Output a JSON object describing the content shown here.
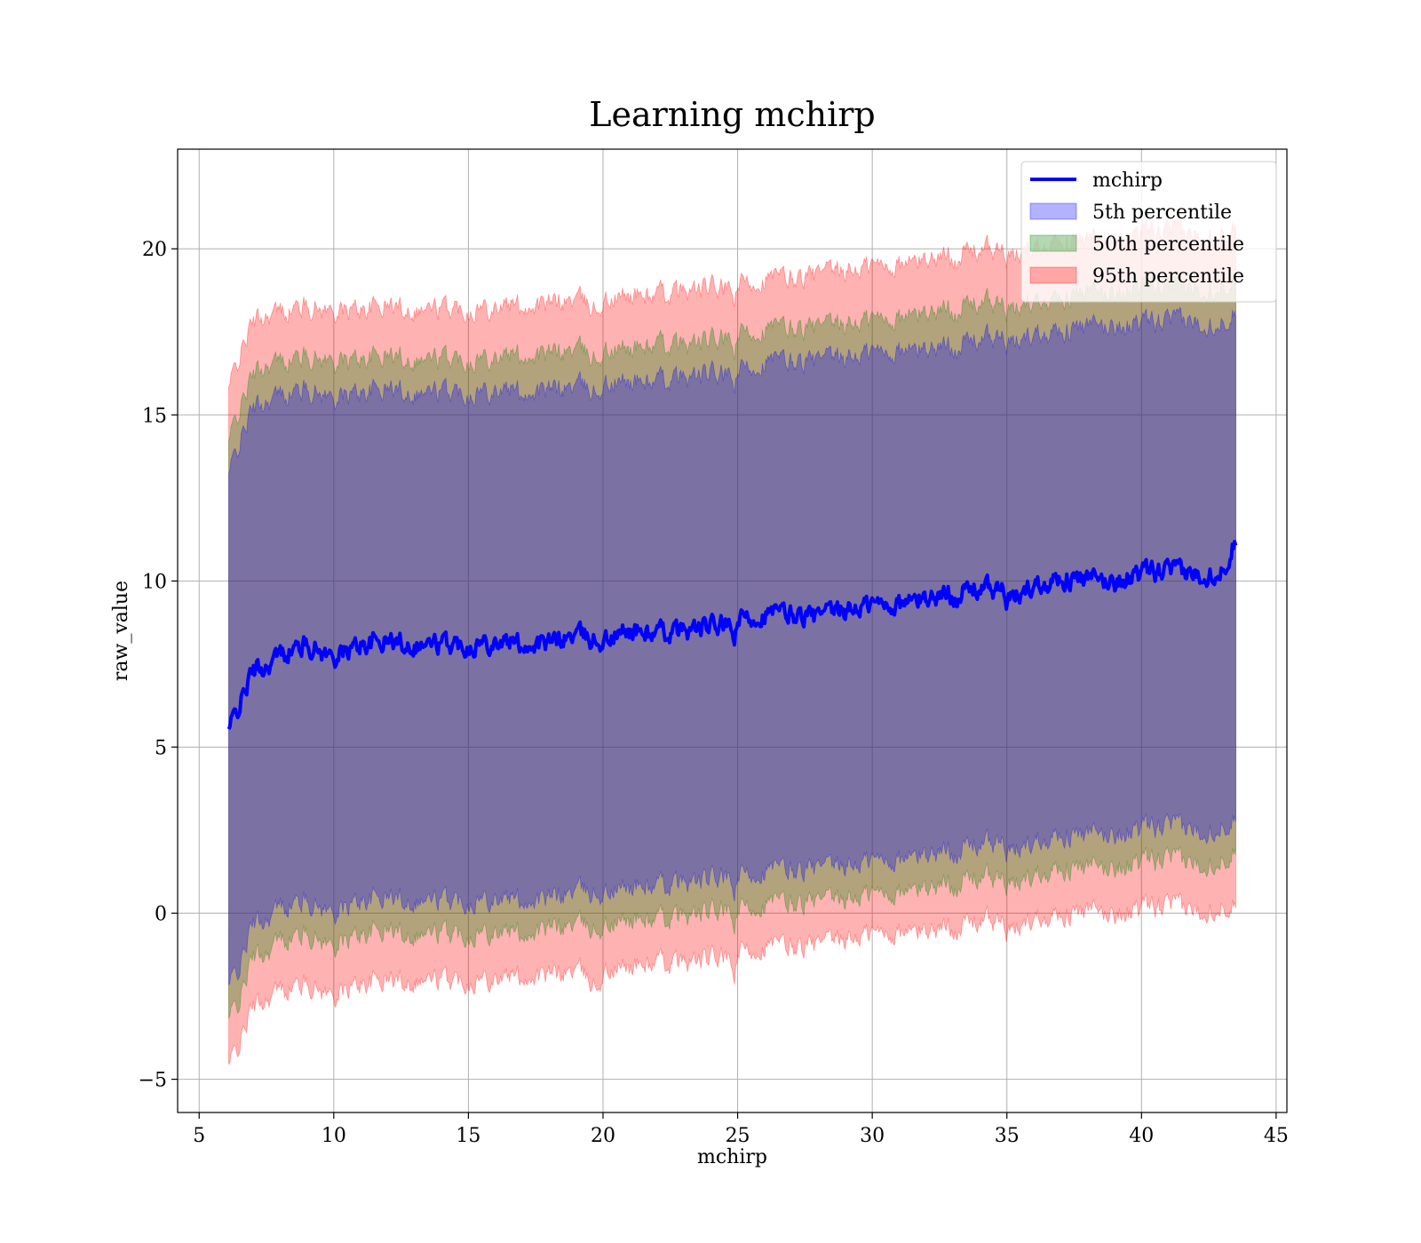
{
  "chart_data": {
    "type": "area",
    "title": "Learning mchirp",
    "xlabel": "mchirp",
    "ylabel": "raw_value",
    "xlim": [
      4.2,
      45.4
    ],
    "ylim": [
      -6.0,
      23.0
    ],
    "xticks": [
      5,
      10,
      15,
      20,
      25,
      30,
      35,
      40,
      45
    ],
    "yticks": [
      -5,
      0,
      5,
      10,
      15,
      20
    ],
    "xtick_labels": [
      "5",
      "10",
      "15",
      "20",
      "25",
      "30",
      "35",
      "40",
      "45"
    ],
    "ytick_labels": [
      "−5",
      "0",
      "5",
      "10",
      "15",
      "20"
    ],
    "grid": true,
    "legend_position": "upper right",
    "x": [
      6.1,
      6.5,
      7.0,
      7.5,
      8.0,
      9.0,
      10.0,
      11.0,
      12.0,
      13.0,
      14.0,
      15.0,
      16.0,
      17.0,
      18.0,
      19.0,
      19.8,
      20.0,
      21.0,
      22.0,
      23.0,
      24.0,
      24.5,
      24.9,
      25.0,
      26.0,
      27.0,
      28.0,
      29.0,
      30.0,
      31.0,
      32.0,
      33.0,
      34.0,
      34.9,
      35.0,
      36.0,
      37.0,
      38.0,
      39.0,
      40.0,
      41.0,
      42.0,
      43.0,
      43.5
    ],
    "series": [
      {
        "name": "mchirp",
        "kind": "line",
        "color": "#0000ff",
        "values": [
          5.5,
          6.3,
          7.3,
          7.4,
          7.8,
          8.1,
          7.7,
          8.1,
          8.2,
          8.1,
          8.1,
          8.1,
          8.2,
          8.1,
          8.1,
          8.4,
          8.2,
          8.2,
          8.5,
          8.4,
          8.5,
          8.6,
          8.7,
          8.3,
          8.8,
          9.0,
          9.0,
          8.9,
          9.1,
          9.3,
          9.3,
          9.5,
          9.6,
          9.8,
          9.7,
          9.3,
          9.9,
          10.1,
          10.0,
          10.0,
          10.2,
          10.3,
          10.2,
          10.3,
          11.3
        ]
      },
      {
        "name": "5th percentile",
        "kind": "band",
        "color": "#0000ff",
        "upper": [
          13.2,
          14.2,
          15.2,
          15.4,
          15.6,
          15.8,
          15.5,
          15.7,
          15.8,
          15.7,
          15.7,
          15.7,
          15.8,
          15.7,
          15.7,
          15.9,
          15.7,
          15.9,
          16.0,
          16.0,
          16.1,
          16.2,
          16.2,
          15.9,
          16.3,
          16.6,
          16.6,
          16.6,
          16.7,
          16.9,
          16.9,
          17.0,
          17.1,
          17.3,
          17.3,
          17.0,
          17.5,
          17.6,
          17.6,
          17.7,
          17.7,
          17.8,
          17.8,
          17.8,
          18.2
        ],
        "lower": [
          -2.2,
          -1.6,
          -0.3,
          -0.2,
          0.2,
          0.4,
          0.0,
          0.4,
          0.5,
          0.4,
          0.4,
          0.4,
          0.5,
          0.4,
          0.4,
          0.7,
          0.6,
          0.6,
          0.8,
          0.8,
          0.9,
          1.0,
          1.1,
          0.6,
          1.1,
          1.3,
          1.3,
          1.3,
          1.4,
          1.6,
          1.6,
          1.8,
          1.9,
          2.1,
          2.1,
          1.7,
          2.2,
          2.4,
          2.3,
          2.4,
          2.5,
          2.6,
          2.5,
          2.6,
          3.0
        ]
      },
      {
        "name": "50th percentile",
        "kind": "band",
        "color": "#008000",
        "upper": [
          14.2,
          15.2,
          16.2,
          16.5,
          16.6,
          16.8,
          16.6,
          16.7,
          16.8,
          16.7,
          16.7,
          16.7,
          16.8,
          16.8,
          16.8,
          17.0,
          16.7,
          16.9,
          17.0,
          17.1,
          17.1,
          17.2,
          17.3,
          16.9,
          17.4,
          17.6,
          17.6,
          17.6,
          17.7,
          17.9,
          17.9,
          18.1,
          18.2,
          18.4,
          18.3,
          18.0,
          18.5,
          18.6,
          18.6,
          18.7,
          18.8,
          18.8,
          18.8,
          18.9,
          19.2
        ],
        "lower": [
          -3.2,
          -2.6,
          -1.3,
          -1.2,
          -0.8,
          -0.6,
          -1.0,
          -0.6,
          -0.5,
          -0.6,
          -0.6,
          -0.6,
          -0.5,
          -0.6,
          -0.5,
          -0.3,
          -0.5,
          -0.4,
          -0.2,
          -0.2,
          -0.1,
          0.0,
          0.1,
          -0.4,
          0.1,
          0.3,
          0.3,
          0.3,
          0.4,
          0.6,
          0.6,
          0.8,
          0.9,
          1.1,
          1.0,
          0.7,
          1.2,
          1.4,
          1.3,
          1.4,
          1.5,
          1.6,
          1.5,
          1.6,
          2.0
        ]
      },
      {
        "name": "95th percentile",
        "kind": "band",
        "color": "#ff0000",
        "upper": [
          15.8,
          16.8,
          17.8,
          18.0,
          18.1,
          18.3,
          18.1,
          18.2,
          18.3,
          18.2,
          18.2,
          18.2,
          18.3,
          18.3,
          18.3,
          18.5,
          18.2,
          18.4,
          18.6,
          18.6,
          18.7,
          18.8,
          18.8,
          18.5,
          18.9,
          19.1,
          19.1,
          19.2,
          19.3,
          19.5,
          19.5,
          19.7,
          19.8,
          20.0,
          19.9,
          19.6,
          20.1,
          20.3,
          20.2,
          20.3,
          20.4,
          20.5,
          20.4,
          20.5,
          20.8
        ],
        "lower": [
          -4.6,
          -3.9,
          -2.8,
          -2.6,
          -2.3,
          -2.1,
          -2.5,
          -2.1,
          -2.0,
          -2.0,
          -2.0,
          -2.0,
          -1.9,
          -1.9,
          -1.9,
          -1.7,
          -2.2,
          -1.8,
          -1.6,
          -1.5,
          -1.5,
          -1.4,
          -1.3,
          -1.9,
          -1.2,
          -1.0,
          -1.0,
          -1.0,
          -0.8,
          -0.6,
          -0.6,
          -0.5,
          -0.4,
          -0.2,
          -0.3,
          -0.7,
          -0.1,
          0.0,
          0.0,
          0.0,
          0.1,
          0.2,
          0.1,
          0.2,
          0.4
        ]
      }
    ]
  }
}
